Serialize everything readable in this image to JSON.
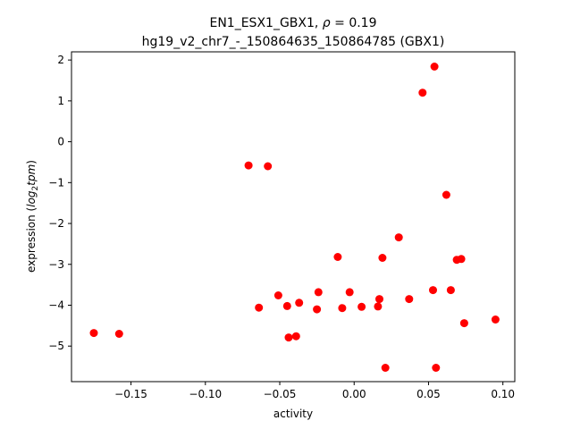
{
  "chart_data": {
    "type": "scatter",
    "title_line1": "EN1_ESX1_GBX1, ",
    "title_rho_symbol": "ρ",
    "title_rho_rest": " = 0.19",
    "title_line2": "hg19_v2_chr7_-_150864635_150864785 (GBX1)",
    "xlabel": "activity",
    "ylabel_prefix": "expression (",
    "ylabel_log": "log",
    "ylabel_sub": "2",
    "ylabel_tpm": "tpm",
    "ylabel_suffix": ")",
    "xlim": [
      -0.19,
      0.108
    ],
    "ylim": [
      -5.87,
      2.2
    ],
    "xticks": [
      {
        "value": -0.15,
        "label": "−0.15"
      },
      {
        "value": -0.1,
        "label": "−0.10"
      },
      {
        "value": -0.05,
        "label": "−0.05"
      },
      {
        "value": 0.0,
        "label": "0.00"
      },
      {
        "value": 0.05,
        "label": "0.05"
      },
      {
        "value": 0.1,
        "label": "0.10"
      }
    ],
    "yticks": [
      {
        "value": 2,
        "label": "2"
      },
      {
        "value": 1,
        "label": "1"
      },
      {
        "value": 0,
        "label": "0"
      },
      {
        "value": -1,
        "label": "−1"
      },
      {
        "value": -2,
        "label": "−2"
      },
      {
        "value": -3,
        "label": "−3"
      },
      {
        "value": -4,
        "label": "−4"
      },
      {
        "value": -5,
        "label": "−5"
      }
    ],
    "marker_color": "#ff0000",
    "points": [
      {
        "x": -0.175,
        "y": -4.68
      },
      {
        "x": -0.158,
        "y": -4.7
      },
      {
        "x": -0.071,
        "y": -0.58
      },
      {
        "x": -0.058,
        "y": -0.6
      },
      {
        "x": -0.064,
        "y": -4.06
      },
      {
        "x": -0.051,
        "y": -3.76
      },
      {
        "x": -0.045,
        "y": -4.02
      },
      {
        "x": -0.044,
        "y": -4.79
      },
      {
        "x": -0.039,
        "y": -4.76
      },
      {
        "x": -0.037,
        "y": -3.94
      },
      {
        "x": -0.025,
        "y": -4.1
      },
      {
        "x": -0.024,
        "y": -3.68
      },
      {
        "x": -0.011,
        "y": -2.82
      },
      {
        "x": -0.008,
        "y": -4.07
      },
      {
        "x": -0.003,
        "y": -3.68
      },
      {
        "x": 0.005,
        "y": -4.04
      },
      {
        "x": 0.016,
        "y": -4.03
      },
      {
        "x": 0.017,
        "y": -3.85
      },
      {
        "x": 0.019,
        "y": -2.84
      },
      {
        "x": 0.021,
        "y": -5.53
      },
      {
        "x": 0.03,
        "y": -2.34
      },
      {
        "x": 0.037,
        "y": -3.85
      },
      {
        "x": 0.046,
        "y": 1.2
      },
      {
        "x": 0.053,
        "y": -3.63
      },
      {
        "x": 0.054,
        "y": 1.84
      },
      {
        "x": 0.055,
        "y": -5.53
      },
      {
        "x": 0.062,
        "y": -1.3
      },
      {
        "x": 0.065,
        "y": -3.63
      },
      {
        "x": 0.069,
        "y": -2.89
      },
      {
        "x": 0.072,
        "y": -2.87
      },
      {
        "x": 0.074,
        "y": -4.44
      },
      {
        "x": 0.095,
        "y": -4.35
      }
    ]
  }
}
